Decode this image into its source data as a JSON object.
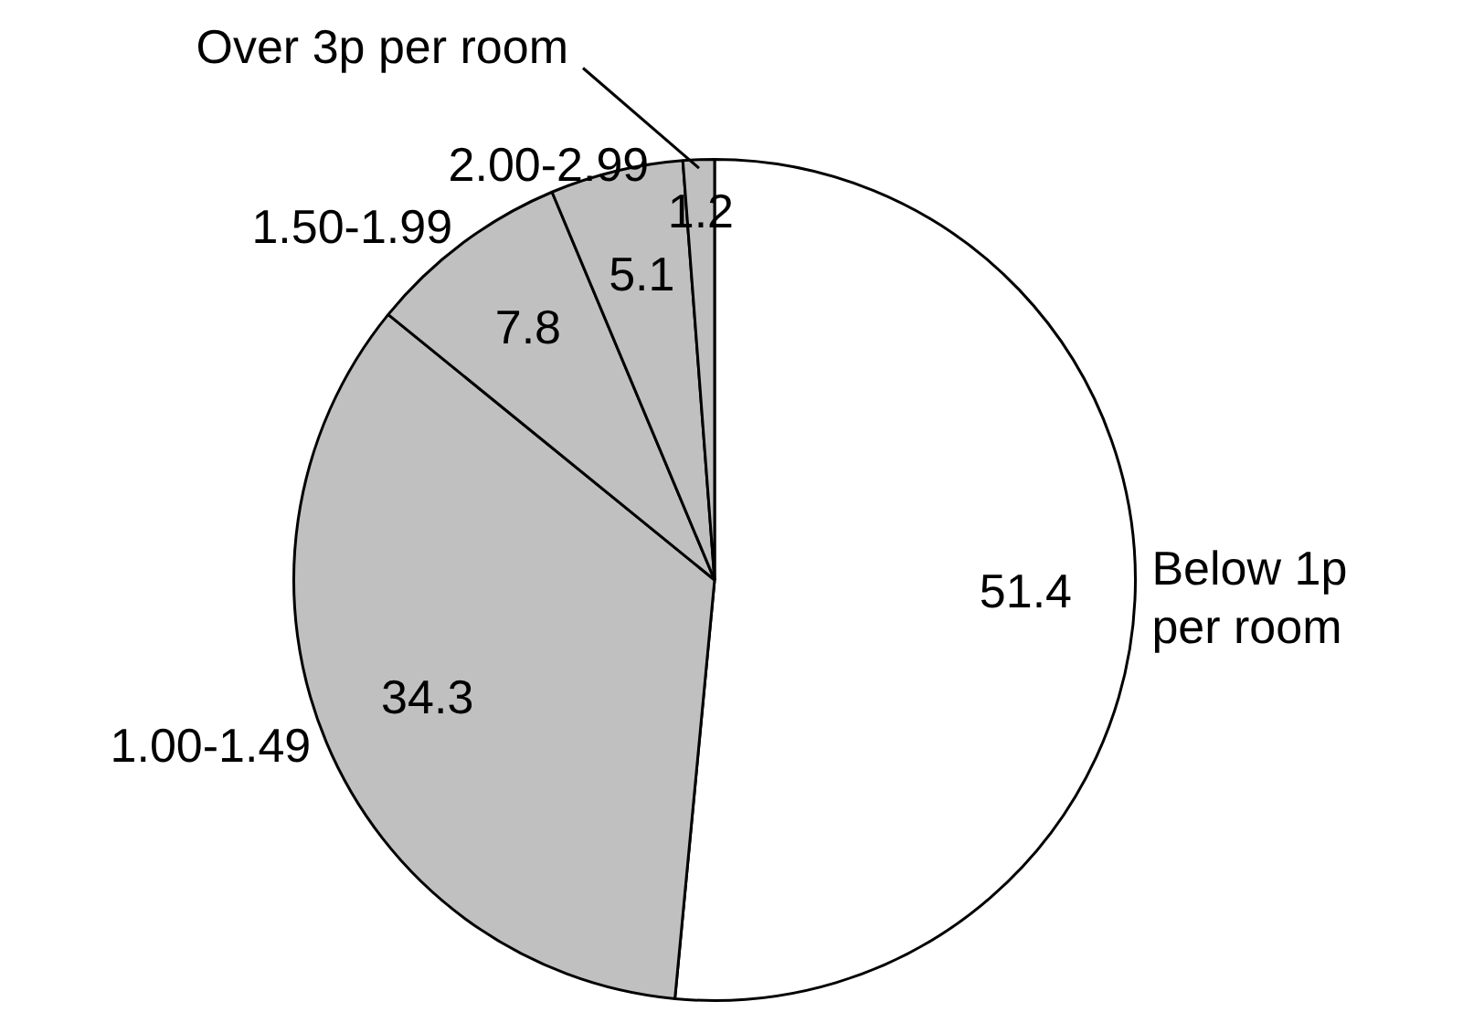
{
  "chart_data": {
    "type": "pie",
    "categories": [
      "Below 1p per room",
      "1.00-1.49",
      "1.50-1.99",
      "2.00-2.99",
      "Over 3p per room"
    ],
    "values": [
      51.4,
      34.3,
      7.8,
      5.1,
      1.2
    ],
    "colors": [
      "#ffffff",
      "#c0c0c0",
      "#c0c0c0",
      "#c0c0c0",
      "#c0c0c0"
    ],
    "data_labels": true,
    "legend": false
  }
}
